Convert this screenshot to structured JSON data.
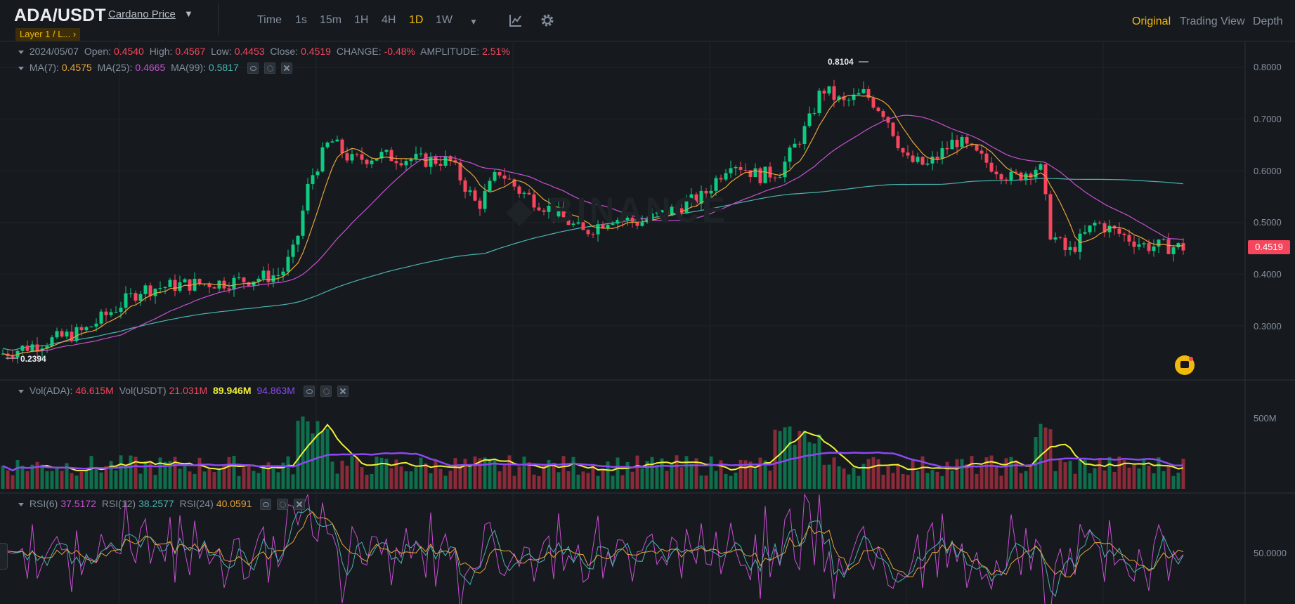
{
  "header": {
    "pair": "ADA/USDT",
    "pair_link": "Cardano Price",
    "tag": "Layer 1 / L...",
    "timeframes": [
      "Time",
      "1s",
      "15m",
      "1H",
      "4H",
      "1D",
      "1W"
    ],
    "active_timeframe": "1D",
    "views": [
      "Original",
      "Trading View",
      "Depth"
    ],
    "active_view": "Original"
  },
  "ohlc": {
    "date": "2024/05/07",
    "open_label": "Open:",
    "open": "0.4540",
    "high_label": "High:",
    "high": "0.4567",
    "low_label": "Low:",
    "low": "0.4453",
    "close_label": "Close:",
    "close": "0.4519",
    "change_label": "CHANGE:",
    "change": "-0.48%",
    "amplitude_label": "AMPLITUDE:",
    "amplitude": "2.51%"
  },
  "ma": {
    "ma7_label": "MA(7):",
    "ma7": "0.4575",
    "ma25_label": "MA(25):",
    "ma25": "0.4665",
    "ma99_label": "MA(99):",
    "ma99": "0.5817"
  },
  "volume": {
    "ada_label": "Vol(ADA):",
    "ada": "46.615M",
    "usdt_label": "Vol(USDT)",
    "usdt": "21.031M",
    "ma_a": "89.946M",
    "ma_b": "94.863M"
  },
  "rsi": {
    "rsi6_label": "RSI(6)",
    "rsi6": "37.5172",
    "rsi12_label": "RSI(12)",
    "rsi12": "38.2577",
    "rsi24_label": "RSI(24)",
    "rsi24": "40.0591"
  },
  "axis": {
    "price_ticks": [
      "0.8000",
      "0.7000",
      "0.6000",
      "0.5000",
      "0.4000",
      "0.3000"
    ],
    "volume_tick": "500M",
    "rsi_tick": "50.0000",
    "current_price": "0.4519",
    "high_marker": "0.8104",
    "low_marker": "0.2394"
  },
  "colors": {
    "up": "#0ecb81",
    "down": "#f6465d",
    "ma7": "#e8a33b",
    "ma25": "#c84fd3",
    "ma99": "#4bb3b0",
    "vol_ma_a": "#f0f035",
    "vol_ma_b": "#8b48f3",
    "accent": "#f0b90b"
  }
}
